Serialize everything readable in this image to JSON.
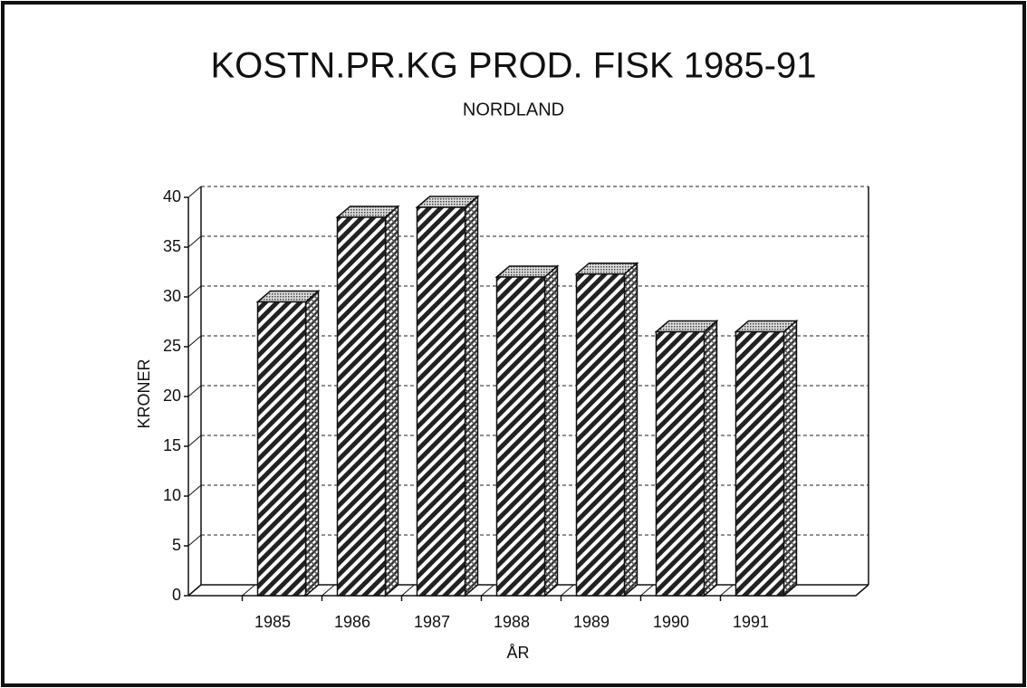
{
  "chart_data": {
    "type": "bar3d",
    "title": "KOSTN.PR.KG PROD. FISK 1985-91",
    "subtitle": "NORDLAND",
    "x_label": "ÅR",
    "y_label": "KRONER",
    "categories": [
      "1985",
      "1986",
      "1987",
      "1988",
      "1989",
      "1990",
      "1991"
    ],
    "values": [
      29.5,
      38,
      39,
      32,
      32.3,
      26.5,
      26.5
    ],
    "ylim": [
      0,
      40
    ],
    "yticks": [
      0,
      5,
      10,
      15,
      20,
      25,
      30,
      35,
      40
    ],
    "grid": true
  }
}
